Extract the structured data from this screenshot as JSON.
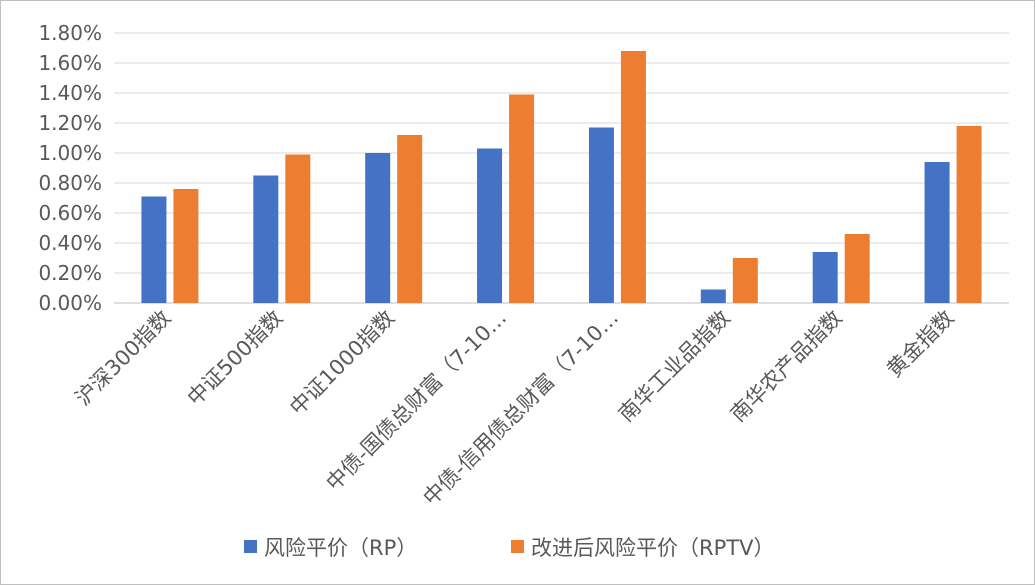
{
  "chart_data": {
    "type": "bar",
    "title": "",
    "xlabel": "",
    "ylabel": "",
    "ylim": [
      0,
      0.018
    ],
    "y_ticks": [
      "0.00%",
      "0.20%",
      "0.40%",
      "0.60%",
      "0.80%",
      "1.00%",
      "1.20%",
      "1.40%",
      "1.60%",
      "1.80%"
    ],
    "categories": [
      "沪深300指数",
      "中证500指数",
      "中证1000指数",
      "中债-国债总财富（7-10…",
      "中债-信用债总财富（7-10…",
      "南华工业品指数",
      "南华农产品指数",
      "黄金指数"
    ],
    "series": [
      {
        "name": "风险平价（RP）",
        "color": "#4472C4",
        "values": [
          0.0071,
          0.0085,
          0.01,
          0.0103,
          0.0117,
          0.0009,
          0.0034,
          0.0094
        ]
      },
      {
        "name": "改进后风险平价（RPTV）",
        "color": "#ED7D31",
        "values": [
          0.0076,
          0.0099,
          0.0112,
          0.0139,
          0.0168,
          0.003,
          0.0046,
          0.0118
        ]
      }
    ],
    "grid": true,
    "legend_position": "bottom"
  }
}
